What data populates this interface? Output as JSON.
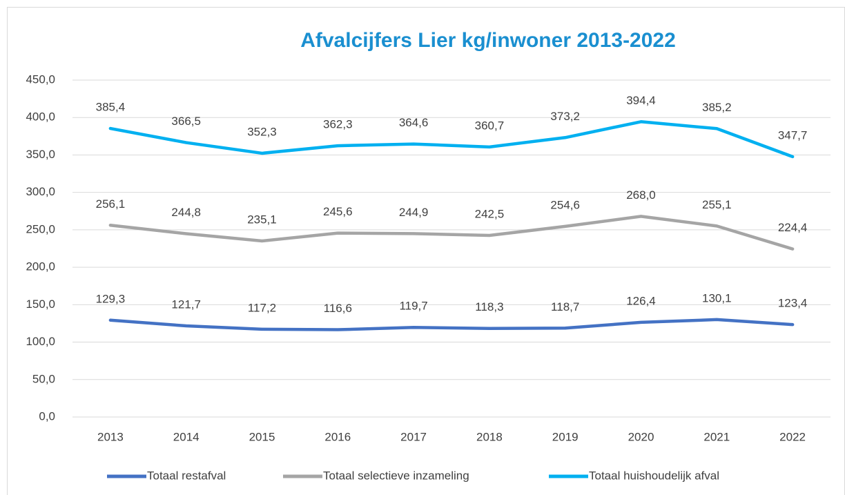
{
  "chart_data": {
    "type": "line",
    "title": "Afvalcijfers Lier kg/inwoner 2013-2022",
    "categories": [
      "2013",
      "2014",
      "2015",
      "2016",
      "2017",
      "2018",
      "2019",
      "2020",
      "2021",
      "2022"
    ],
    "series": [
      {
        "name": "Totaal restafval",
        "color": "#4472c4",
        "values": [
          129.3,
          121.7,
          117.2,
          116.6,
          119.7,
          118.3,
          118.7,
          126.4,
          130.1,
          123.4
        ],
        "value_labels": [
          "129,3",
          "121,7",
          "117,2",
          "116,6",
          "119,7",
          "118,3",
          "118,7",
          "126,4",
          "130,1",
          "123,4"
        ]
      },
      {
        "name": "Totaal selectieve inzameling",
        "color": "#a5a5a5",
        "values": [
          256.1,
          244.8,
          235.1,
          245.6,
          244.9,
          242.5,
          254.6,
          268.0,
          255.1,
          224.4
        ],
        "value_labels": [
          "256,1",
          "244,8",
          "235,1",
          "245,6",
          "244,9",
          "242,5",
          "254,6",
          "268,0",
          "255,1",
          "224,4"
        ]
      },
      {
        "name": "Totaal huishoudelijk afval",
        "color": "#00b0f0",
        "values": [
          385.4,
          366.5,
          352.3,
          362.3,
          364.6,
          360.7,
          373.2,
          394.4,
          385.2,
          347.7
        ],
        "value_labels": [
          "385,4",
          "366,5",
          "352,3",
          "362,3",
          "364,6",
          "360,7",
          "373,2",
          "394,4",
          "385,2",
          "347,7"
        ]
      }
    ],
    "ylim": [
      0,
      450
    ],
    "yticks": [
      {
        "value": 0,
        "label": "0,0"
      },
      {
        "value": 50,
        "label": "50,0"
      },
      {
        "value": 100,
        "label": "100,0"
      },
      {
        "value": 150,
        "label": "150,0"
      },
      {
        "value": 200,
        "label": "200,0"
      },
      {
        "value": 250,
        "label": "250,0"
      },
      {
        "value": 300,
        "label": "300,0"
      },
      {
        "value": 350,
        "label": "350,0"
      },
      {
        "value": 400,
        "label": "400,0"
      },
      {
        "value": 450,
        "label": "450,0"
      }
    ],
    "grid": true,
    "legend": "bottom"
  }
}
